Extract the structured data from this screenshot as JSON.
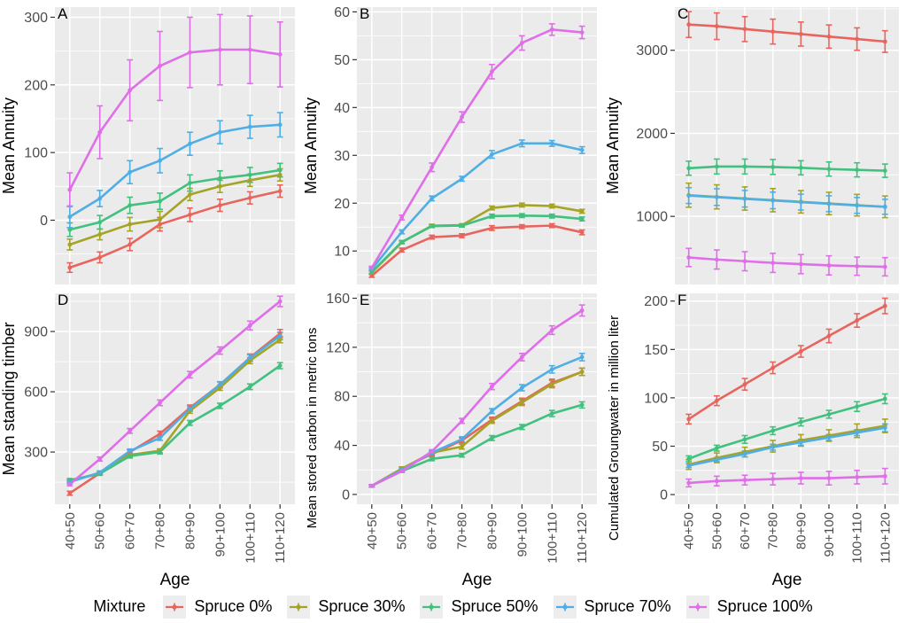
{
  "figure": {
    "x_axis_title": "Age",
    "categories": [
      "40+50",
      "50+60",
      "60+70",
      "70+80",
      "80+90",
      "90+100",
      "100+110",
      "110+120"
    ],
    "panel_bg": "#EBEBEB",
    "grid_color": "#FFFFFF",
    "tick_label_color": "#4D4D4D",
    "text_color": "#000000"
  },
  "legend": {
    "title": "Mixture",
    "entries": [
      {
        "label": "Spruce 0%",
        "color": "#E8655F"
      },
      {
        "label": "Spruce 30%",
        "color": "#A5A426"
      },
      {
        "label": "Spruce 50%",
        "color": "#41C07E"
      },
      {
        "label": "Spruce 70%",
        "color": "#4FAEE3"
      },
      {
        "label": "Spruce 100%",
        "color": "#DF6FE8"
      }
    ]
  },
  "chart_data": [
    {
      "type": "line",
      "tag": "A",
      "ylabel": "Mean Annuity",
      "ylim": [
        -95,
        315
      ],
      "yticks": [
        0,
        100,
        200,
        300
      ],
      "series": [
        {
          "name": "Spruce 0%",
          "values": [
            -70,
            -55,
            -36,
            -6,
            8,
            22,
            33,
            43
          ],
          "errors": [
            7,
            8,
            9,
            10,
            10,
            9,
            9,
            9
          ]
        },
        {
          "name": "Spruce 30%",
          "values": [
            -36,
            -21,
            -6,
            1,
            38,
            50,
            59,
            67
          ],
          "errors": [
            8,
            8,
            10,
            12,
            9,
            9,
            9,
            9
          ]
        },
        {
          "name": "Spruce 50%",
          "values": [
            -14,
            -3,
            22,
            28,
            55,
            62,
            67,
            74
          ],
          "errors": [
            10,
            10,
            12,
            12,
            12,
            11,
            11,
            10
          ]
        },
        {
          "name": "Spruce 70%",
          "values": [
            5,
            32,
            71,
            88,
            113,
            130,
            138,
            141
          ],
          "errors": [
            16,
            12,
            17,
            18,
            17,
            17,
            17,
            18
          ]
        },
        {
          "name": "Spruce 100%",
          "values": [
            45,
            130,
            192,
            228,
            248,
            252,
            252,
            245
          ],
          "errors": [
            25,
            39,
            45,
            51,
            52,
            52,
            50,
            48
          ]
        }
      ]
    },
    {
      "type": "line",
      "tag": "B",
      "ylabel": "Mean Annuity",
      "ylim": [
        3,
        61
      ],
      "yticks": [
        10,
        20,
        30,
        40,
        50,
        60
      ],
      "series": [
        {
          "name": "Spruce 0%",
          "values": [
            4.8,
            10.2,
            12.9,
            13.2,
            14.8,
            15.1,
            15.3,
            13.9
          ],
          "errors": [
            0.3,
            0.4,
            0.4,
            0.4,
            0.5,
            0.4,
            0.4,
            0.5
          ]
        },
        {
          "name": "Spruce 30%",
          "values": [
            5.5,
            11.8,
            15.3,
            15.4,
            19.0,
            19.6,
            19.4,
            18.3
          ],
          "errors": [
            0.3,
            0.3,
            0.3,
            0.3,
            0.4,
            0.4,
            0.4,
            0.4
          ]
        },
        {
          "name": "Spruce 50%",
          "values": [
            5.6,
            11.9,
            15.2,
            15.3,
            17.3,
            17.4,
            17.3,
            16.7
          ],
          "errors": [
            0.3,
            0.3,
            0.3,
            0.3,
            0.4,
            0.4,
            0.4,
            0.4
          ]
        },
        {
          "name": "Spruce 70%",
          "values": [
            6.2,
            14.0,
            21.0,
            25.1,
            30.2,
            32.5,
            32.5,
            31.1
          ],
          "errors": [
            0.3,
            0.4,
            0.5,
            0.5,
            0.8,
            0.7,
            0.6,
            0.7
          ]
        },
        {
          "name": "Spruce 100%",
          "values": [
            6.5,
            17.0,
            27.5,
            38.0,
            47.5,
            53.5,
            56.3,
            55.7
          ],
          "errors": [
            0.3,
            0.5,
            0.9,
            1.1,
            1.5,
            1.5,
            1.2,
            1.3
          ]
        }
      ]
    },
    {
      "type": "line",
      "tag": "C",
      "ylabel": "Mean Annuity",
      "ylim": [
        180,
        3520
      ],
      "yticks": [
        1000,
        2000,
        3000
      ],
      "series": [
        {
          "name": "Spruce 0%",
          "values": [
            3310,
            3290,
            3255,
            3225,
            3195,
            3165,
            3135,
            3105
          ],
          "errors": [
            155,
            160,
            150,
            150,
            145,
            140,
            135,
            130
          ]
        },
        {
          "name": "Spruce 30%",
          "values": [
            1255,
            1235,
            1215,
            1195,
            1175,
            1155,
            1135,
            1115
          ],
          "errors": [
            145,
            145,
            140,
            140,
            135,
            135,
            130,
            130
          ]
        },
        {
          "name": "Spruce 50%",
          "values": [
            1580,
            1600,
            1600,
            1595,
            1585,
            1570,
            1560,
            1550
          ],
          "errors": [
            85,
            90,
            90,
            90,
            85,
            85,
            85,
            80
          ]
        },
        {
          "name": "Spruce 70%",
          "values": [
            1250,
            1232,
            1212,
            1192,
            1172,
            1152,
            1132,
            1115
          ],
          "errors": [
            95,
            100,
            100,
            100,
            95,
            95,
            95,
            90
          ]
        },
        {
          "name": "Spruce 100%",
          "values": [
            505,
            480,
            460,
            440,
            425,
            410,
            400,
            393
          ],
          "errors": [
            110,
            115,
            115,
            115,
            115,
            115,
            110,
            110
          ]
        }
      ]
    },
    {
      "type": "line",
      "tag": "D",
      "ylabel": "Mean standing timber",
      "ylim": [
        40,
        1090
      ],
      "yticks": [
        300,
        600,
        900
      ],
      "series": [
        {
          "name": "Spruce 0%",
          "values": [
            95,
            195,
            300,
            390,
            520,
            635,
            770,
            890
          ],
          "errors": [
            10,
            8,
            10,
            14,
            14,
            15,
            18,
            20
          ]
        },
        {
          "name": "Spruce 30%",
          "values": [
            155,
            196,
            286,
            306,
            505,
            620,
            755,
            860
          ],
          "errors": [
            8,
            8,
            10,
            10,
            12,
            13,
            15,
            16
          ]
        },
        {
          "name": "Spruce 50%",
          "values": [
            160,
            192,
            280,
            300,
            445,
            530,
            625,
            730
          ],
          "errors": [
            8,
            8,
            10,
            10,
            12,
            13,
            14,
            15
          ]
        },
        {
          "name": "Spruce 70%",
          "values": [
            150,
            198,
            305,
            370,
            515,
            635,
            768,
            878
          ],
          "errors": [
            8,
            8,
            10,
            12,
            12,
            14,
            16,
            18
          ]
        },
        {
          "name": "Spruce 100%",
          "values": [
            140,
            265,
            405,
            545,
            685,
            805,
            930,
            1050
          ],
          "errors": [
            8,
            10,
            12,
            14,
            16,
            18,
            22,
            26
          ]
        }
      ]
    },
    {
      "type": "line",
      "tag": "E",
      "ylabel": "Mean stored carbon in metric tons",
      "ylim": [
        -8,
        164
      ],
      "yticks": [
        0,
        40,
        80,
        120,
        160
      ],
      "series": [
        {
          "name": "Spruce 0%",
          "values": [
            7,
            21,
            33,
            44,
            61,
            76,
            91,
            100
          ],
          "errors": [
            1,
            1.5,
            1.5,
            2,
            2,
            2.5,
            3,
            3
          ]
        },
        {
          "name": "Spruce 30%",
          "values": [
            7,
            21,
            34,
            39,
            60,
            75,
            90,
            100
          ],
          "errors": [
            1,
            1.5,
            1.5,
            2,
            2,
            2.5,
            3,
            3
          ]
        },
        {
          "name": "Spruce 50%",
          "values": [
            7,
            19,
            29,
            32,
            46,
            55,
            66,
            73
          ],
          "errors": [
            1,
            1,
            1.5,
            1.5,
            2,
            2,
            2.5,
            2.5
          ]
        },
        {
          "name": "Spruce 70%",
          "values": [
            7,
            20,
            34,
            45,
            68,
            87,
            102,
            112
          ],
          "errors": [
            1,
            1.5,
            1.5,
            2,
            2,
            2.5,
            3,
            3
          ]
        },
        {
          "name": "Spruce 100%",
          "values": [
            7,
            19,
            35,
            60,
            88,
            112,
            134,
            150
          ],
          "errors": [
            1,
            1,
            1.5,
            2,
            2.5,
            3,
            3.5,
            4.5
          ]
        }
      ]
    },
    {
      "type": "line",
      "tag": "F",
      "ylabel": "Cumulated Groungwater in million liter",
      "ylim": [
        -10,
        208
      ],
      "yticks": [
        0,
        50,
        100,
        150,
        200
      ],
      "series": [
        {
          "name": "Spruce 0%",
          "values": [
            78,
            97,
            114,
            131,
            148,
            164,
            180,
            195
          ],
          "errors": [
            5,
            5,
            6,
            6,
            6,
            7,
            7,
            8
          ]
        },
        {
          "name": "Spruce 30%",
          "values": [
            31,
            38,
            44,
            50,
            56,
            61,
            66,
            71
          ],
          "errors": [
            5,
            5,
            5,
            6,
            6,
            6,
            7,
            7
          ]
        },
        {
          "name": "Spruce 50%",
          "values": [
            37,
            48,
            57,
            66,
            75,
            83,
            91,
            99
          ],
          "errors": [
            3,
            3,
            4,
            4,
            4,
            4,
            5,
            5
          ]
        },
        {
          "name": "Spruce 70%",
          "values": [
            30,
            36,
            42,
            49,
            54,
            59,
            64,
            69
          ],
          "errors": [
            2,
            2,
            3,
            3,
            3,
            3,
            3,
            4
          ]
        },
        {
          "name": "Spruce 100%",
          "values": [
            12,
            14,
            15,
            16,
            17,
            17,
            18,
            19
          ],
          "errors": [
            4,
            5,
            5,
            6,
            6,
            7,
            7,
            8
          ]
        }
      ]
    }
  ]
}
